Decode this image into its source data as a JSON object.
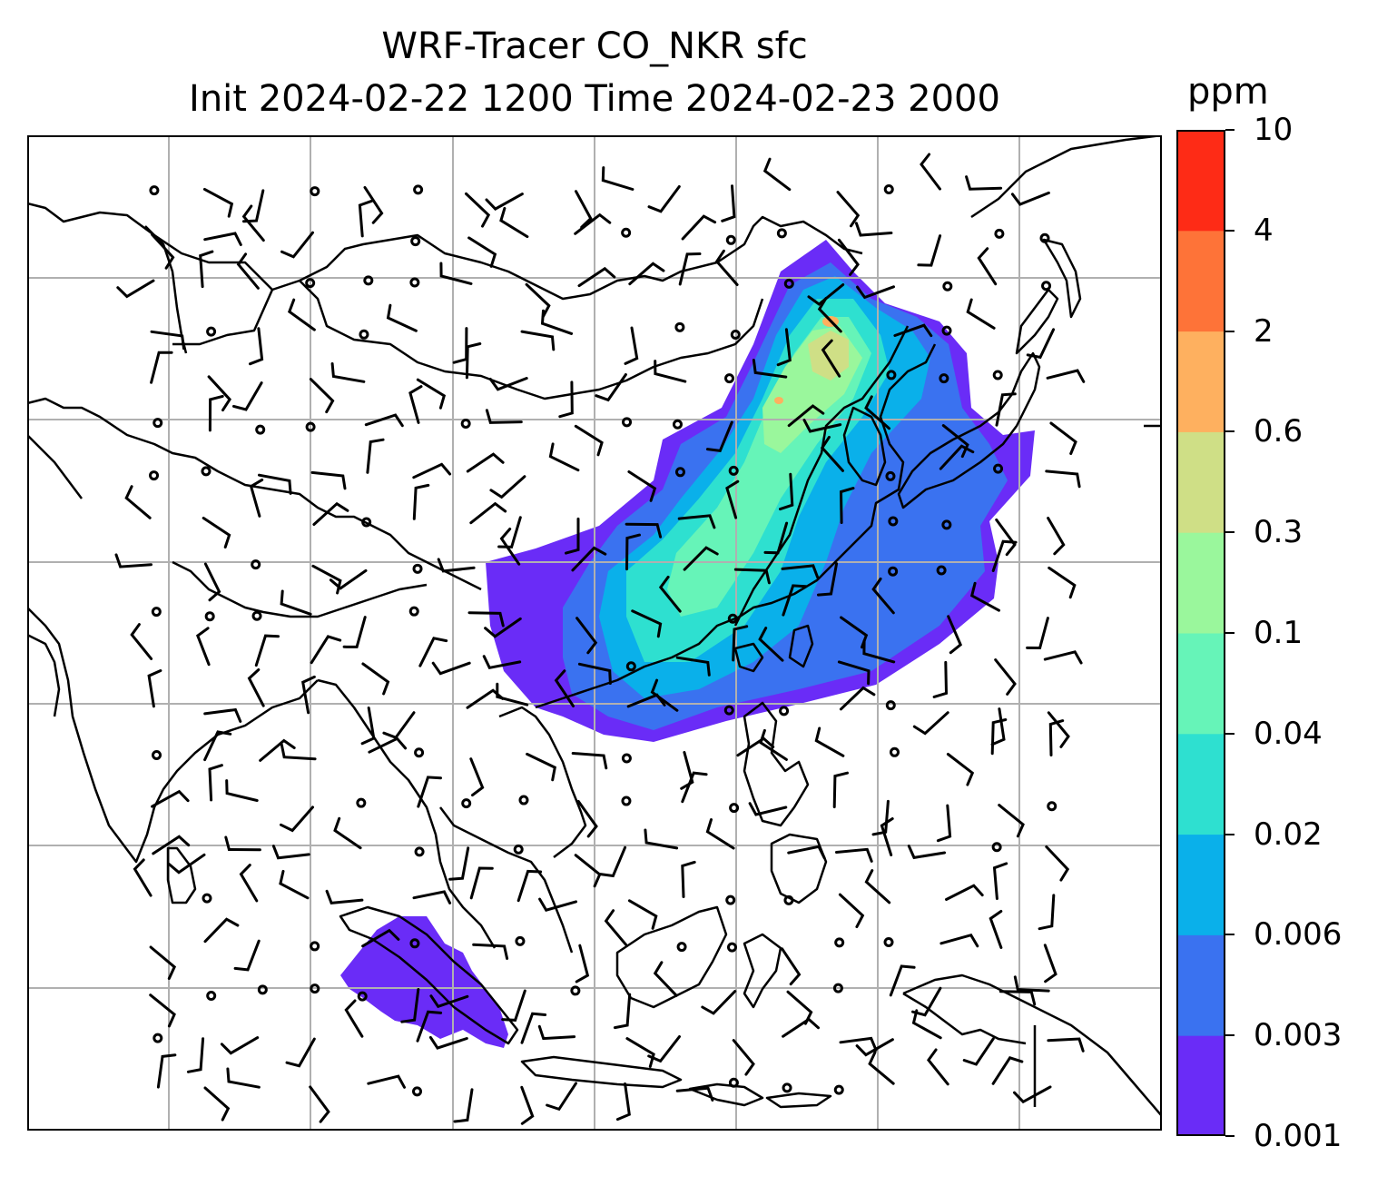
{
  "title": {
    "line1": "WRF-Tracer CO_NKR sfc",
    "line2": "Init 2024-02-22 1200 Time 2024-02-23 2000"
  },
  "map": {
    "region": "East / Southeast Asia",
    "projection": "plate carree",
    "lon_range": [
      60,
      180
    ],
    "lat_range": [
      -20,
      50
    ],
    "gridlines": true,
    "grid_color": "#b0b0b0",
    "coastline_color": "#000000",
    "wind_barbs": true
  },
  "colorbar": {
    "label": "ppm",
    "levels": [
      "0.001",
      "0.003",
      "0.006",
      "0.02",
      "0.04",
      "0.1",
      "0.3",
      "0.6",
      "2",
      "4",
      "10"
    ],
    "colors": [
      "#6a2cf7",
      "#3a72f0",
      "#0ab0ea",
      "#2ee0d0",
      "#66f4b8",
      "#9af79c",
      "#cfdf86",
      "#feb05f",
      "#fe7338",
      "#fe2b16"
    ]
  }
}
